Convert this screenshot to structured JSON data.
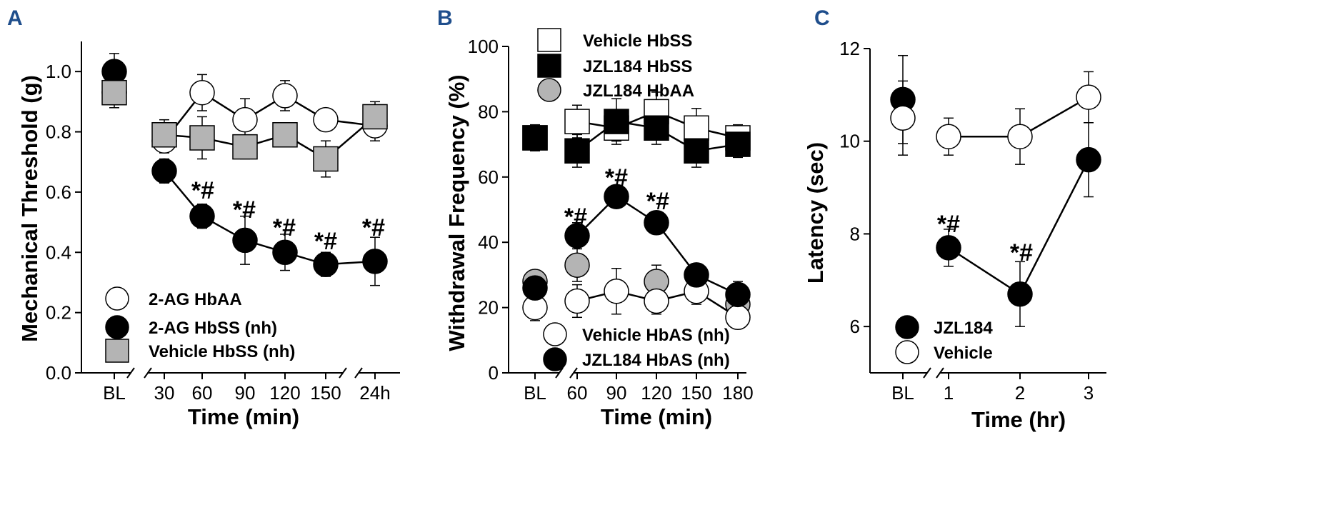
{
  "chart_data": [
    {
      "type": "line",
      "panel": "A",
      "ylabel": "Mechanical Threshold (g)",
      "xlabel": "Time (min)",
      "ylim": [
        0,
        1.1
      ],
      "yticks": [
        "0.0",
        "0.2",
        "0.4",
        "0.6",
        "0.8",
        "1.0"
      ],
      "categories": [
        "BL",
        "30",
        "60",
        "90",
        "120",
        "150",
        "24h"
      ],
      "legend_position": "bottom-left",
      "series": [
        {
          "name": "2-AG HbAA",
          "marker": "circle",
          "fill": "#ffffff",
          "values": [
            0.93,
            0.77,
            0.93,
            0.84,
            0.92,
            0.84,
            0.82
          ],
          "errors": [
            0.04,
            0.04,
            0.06,
            0.07,
            0.05,
            0.03,
            0.05
          ]
        },
        {
          "name": "2-AG HbSS (nh)",
          "marker": "circle",
          "fill": "#000000",
          "values": [
            1.0,
            0.67,
            0.52,
            0.44,
            0.4,
            0.36,
            0.37
          ],
          "errors": [
            0.06,
            0.04,
            0.04,
            0.08,
            0.06,
            0.04,
            0.08
          ]
        },
        {
          "name": "Vehicle HbSS (nh)",
          "marker": "square",
          "fill": "#b4b4b4",
          "values": [
            0.93,
            0.79,
            0.78,
            0.75,
            0.79,
            0.71,
            0.85
          ],
          "errors": [
            0.05,
            0.05,
            0.07,
            0.04,
            0.04,
            0.06,
            0.05
          ]
        }
      ],
      "annotations": [
        {
          "category": "60",
          "text": "*#"
        },
        {
          "category": "90",
          "text": "*#"
        },
        {
          "category": "120",
          "text": "*#"
        },
        {
          "category": "150",
          "text": "*#"
        },
        {
          "category": "24h",
          "text": "*#"
        }
      ]
    },
    {
      "type": "line",
      "panel": "B",
      "ylabel": "Withdrawal Frequency (%)",
      "xlabel": "Time (min)",
      "ylim": [
        0,
        100
      ],
      "yticks": [
        "0",
        "20",
        "40",
        "60",
        "80",
        "100"
      ],
      "categories": [
        "BL",
        "60",
        "90",
        "120",
        "150",
        "180"
      ],
      "legend_position": "top and bottom",
      "series": [
        {
          "name": "Vehicle HbSS",
          "marker": "square",
          "fill": "#ffffff",
          "values": [
            72,
            77,
            75,
            80,
            75,
            72
          ],
          "errors": [
            3,
            5,
            4,
            6,
            6,
            4
          ]
        },
        {
          "name": "JZL184 HbSS",
          "marker": "square",
          "fill": "#000000",
          "values": [
            72,
            68,
            77,
            75,
            68,
            70
          ],
          "errors": [
            4,
            5,
            7,
            5,
            5,
            4
          ]
        },
        {
          "name": "JZL184 HbAA",
          "marker": "circle",
          "fill": "#b4b4b4",
          "values": [
            28,
            33,
            null,
            28,
            null,
            21
          ],
          "errors": [
            3,
            5,
            null,
            5,
            null,
            3
          ]
        },
        {
          "name": "Vehicle HbAS (nh)",
          "marker": "circle",
          "fill": "#ffffff",
          "values": [
            20,
            22,
            25,
            22,
            25,
            17
          ],
          "errors": [
            4,
            5,
            7,
            4,
            4,
            3
          ]
        },
        {
          "name": "JZL184 HbAS (nh)",
          "marker": "circle",
          "fill": "#000000",
          "values": [
            26,
            42,
            54,
            46,
            30,
            24
          ],
          "errors": [
            3,
            4,
            3,
            3,
            3,
            4
          ]
        }
      ],
      "annotations": [
        {
          "category": "60",
          "text": "*#"
        },
        {
          "category": "90",
          "text": "*#"
        },
        {
          "category": "120",
          "text": "*#"
        }
      ]
    },
    {
      "type": "line",
      "panel": "C",
      "ylabel": "Latency (sec)",
      "xlabel": "Time (hr)",
      "ylim": [
        5,
        12
      ],
      "yticks": [
        "6",
        "8",
        "10",
        "12"
      ],
      "categories": [
        "BL",
        "1",
        "2",
        "3"
      ],
      "legend_position": "bottom-left",
      "series": [
        {
          "name": "JZL184",
          "marker": "circle",
          "fill": "#000000",
          "values": [
            10.9,
            7.7,
            6.7,
            9.6
          ],
          "errors": [
            0.95,
            0.4,
            0.7,
            0.8
          ]
        },
        {
          "name": "Vehicle",
          "marker": "circle",
          "fill": "#ffffff",
          "values": [
            10.5,
            10.1,
            10.1,
            10.95
          ],
          "errors": [
            0.8,
            0.4,
            0.6,
            0.55
          ]
        }
      ],
      "annotations": [
        {
          "category": "1",
          "text": "*#"
        },
        {
          "category": "2",
          "text": "*#"
        }
      ]
    }
  ]
}
